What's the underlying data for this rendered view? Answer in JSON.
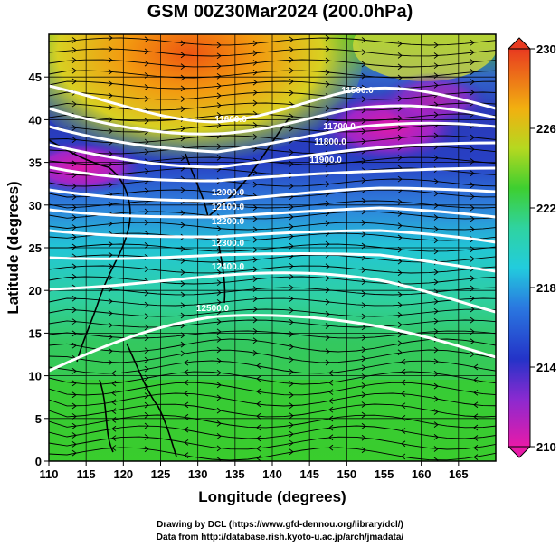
{
  "title": "GSM 00Z30Mar2024 (200.0hPa)",
  "footer": {
    "line1": "Drawing by DCL (https://www.gfd-dennou.org/library/dcl/)",
    "line2": "Data from http://database.rish.kyoto-u.ac.jp/arch/jmadata/"
  },
  "axes": {
    "xlabel": "Longitude (degrees)",
    "ylabel": "Latitude  (degrees)",
    "xticks": [
      "110",
      "115",
      "120",
      "125",
      "130",
      "135",
      "140",
      "145",
      "150",
      "155",
      "160",
      "165"
    ],
    "yticks": [
      "0",
      "5",
      "10",
      "15",
      "20",
      "25",
      "30",
      "35",
      "40",
      "45"
    ]
  },
  "colorbar": {
    "labels": [
      "210",
      "214",
      "218",
      "222",
      "226",
      "230"
    ]
  },
  "contours": [
    {
      "label": "11500.0"
    },
    {
      "label": "11600.0"
    },
    {
      "label": "11700.0"
    },
    {
      "label": "11800.0"
    },
    {
      "label": "11900.0"
    },
    {
      "label": "12000.0"
    },
    {
      "label": "12100.0"
    },
    {
      "label": "12200.0"
    },
    {
      "label": "12300.0"
    },
    {
      "label": "12400.0"
    },
    {
      "label": "12500.0"
    }
  ],
  "colors": {
    "contour": "#ffffff",
    "frame": "#000000"
  }
}
